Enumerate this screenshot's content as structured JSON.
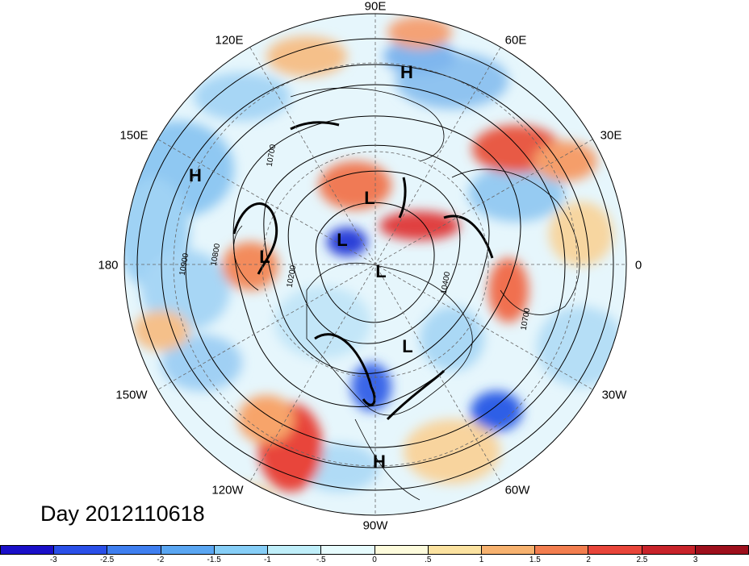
{
  "title_text": "Day 2012110618",
  "projection": "polar-stereographic-north",
  "longitude_labels": {
    "lon_90e": "90E",
    "lon_60e": "60E",
    "lon_30e": "30E",
    "lon_0": "0",
    "lon_30w": "30W",
    "lon_60w": "60W",
    "lon_90w": "90W",
    "lon_120w": "120W",
    "lon_150w": "150W",
    "lon_180": "180",
    "lon_150e": "150E",
    "lon_120e": "120E"
  },
  "pressure_systems": [
    {
      "id": "h1",
      "label": "H"
    },
    {
      "id": "h2",
      "label": "H"
    },
    {
      "id": "h3",
      "label": "H"
    },
    {
      "id": "l1",
      "label": "L"
    },
    {
      "id": "l2",
      "label": "L"
    },
    {
      "id": "l3",
      "label": "L"
    },
    {
      "id": "l4",
      "label": "L"
    },
    {
      "id": "l5",
      "label": "L"
    }
  ],
  "contour_labels": [
    "10700",
    "10800",
    "10900",
    "10200",
    "10400",
    "10700"
  ],
  "colorbar": {
    "tick_labels": [
      "-3",
      "-2.5",
      "-2",
      "-1.5",
      "-1",
      "-.5",
      "0",
      ".5",
      "1",
      "1.5",
      "2",
      "2.5",
      "3"
    ],
    "colors": [
      "#1a0fc8",
      "#2a4fe8",
      "#3f7ff0",
      "#5aa6f2",
      "#86cef7",
      "#bfeef9",
      "#e6fbfd",
      "#fdfbdc",
      "#fbe2a0",
      "#f7b26f",
      "#f37e4f",
      "#e8453a",
      "#c8232a",
      "#9d0f1c"
    ]
  }
}
